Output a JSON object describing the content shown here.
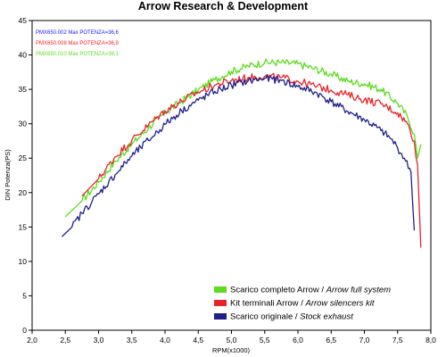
{
  "chart_data": {
    "type": "line",
    "title": "Arrow Research & Development",
    "xlabel": "RPM(x1000)",
    "ylabel": "DIN Potenza(PS)",
    "xlim": [
      2.0,
      8.0
    ],
    "ylim": [
      0,
      45
    ],
    "xticks": [
      "2,0",
      "2,5",
      "3,0",
      "3,5",
      "4,0",
      "4,5",
      "5,0",
      "5,5",
      "6,0",
      "6,5",
      "7,0",
      "7,5",
      "8,0"
    ],
    "yticks": [
      "0",
      "5",
      "10",
      "15",
      "20",
      "25",
      "30",
      "35",
      "40",
      "45"
    ],
    "grid": false,
    "legend_position": "bottom-right",
    "annotations": [
      {
        "text": "PMX650.002  Max POTENZA=36,6",
        "color": "#1a1aff"
      },
      {
        "text": "PMX650.008  Max POTENZA=36,9",
        "color": "#ff2020"
      },
      {
        "text": "PMX650.010  Max POTENZA=39,1",
        "color": "#5cdc1e"
      }
    ],
    "series": [
      {
        "name": "Scarico completo Arrow",
        "name_italic": "Arrow full system",
        "separator": " / ",
        "color": "#5cdc1e",
        "x": [
          2.5,
          2.75,
          3.0,
          3.25,
          3.5,
          3.75,
          4.0,
          4.25,
          4.5,
          4.75,
          5.0,
          5.25,
          5.5,
          5.75,
          6.0,
          6.25,
          6.5,
          6.75,
          7.0,
          7.25,
          7.5,
          7.65,
          7.75,
          7.8,
          7.85
        ],
        "y": [
          16.5,
          18.8,
          21.5,
          24.5,
          27.0,
          29.4,
          31.6,
          33.3,
          34.9,
          36.4,
          37.6,
          38.4,
          38.9,
          38.9,
          38.7,
          38.0,
          37.2,
          36.2,
          35.8,
          35.0,
          33.0,
          31.0,
          28.5,
          25.0,
          27.0
        ]
      },
      {
        "name": "Kit terminali Arrow",
        "name_italic": "Arrow silencers kit",
        "separator": " / ",
        "color": "#e8232a",
        "x": [
          2.75,
          3.0,
          3.25,
          3.5,
          3.75,
          4.0,
          4.25,
          4.5,
          4.75,
          5.0,
          5.25,
          5.5,
          5.75,
          6.0,
          6.25,
          6.5,
          6.75,
          7.0,
          7.25,
          7.5,
          7.65,
          7.75,
          7.8,
          7.85
        ],
        "y": [
          19.5,
          22.0,
          25.2,
          27.6,
          29.8,
          31.9,
          33.3,
          34.6,
          35.6,
          36.3,
          36.7,
          36.9,
          36.7,
          36.2,
          35.5,
          34.9,
          34.2,
          33.5,
          32.9,
          31.6,
          30.0,
          27.5,
          24.0,
          12.0
        ]
      },
      {
        "name": "Scarico originale",
        "name_italic": "Stock exhaust",
        "separator": " / ",
        "color": "#1f1f8f",
        "x": [
          2.45,
          2.6,
          2.75,
          3.0,
          3.25,
          3.5,
          3.75,
          4.0,
          4.25,
          4.5,
          4.75,
          5.0,
          5.25,
          5.5,
          5.75,
          6.0,
          6.25,
          6.5,
          6.75,
          7.0,
          7.25,
          7.4,
          7.5,
          7.6,
          7.7,
          7.75
        ],
        "y": [
          13.6,
          15.0,
          17.0,
          19.8,
          22.6,
          25.3,
          27.6,
          29.9,
          31.9,
          33.4,
          34.7,
          35.6,
          36.2,
          36.6,
          36.3,
          35.4,
          34.6,
          33.2,
          31.8,
          30.6,
          29.0,
          27.8,
          26.5,
          25.0,
          23.0,
          14.5
        ]
      }
    ]
  }
}
